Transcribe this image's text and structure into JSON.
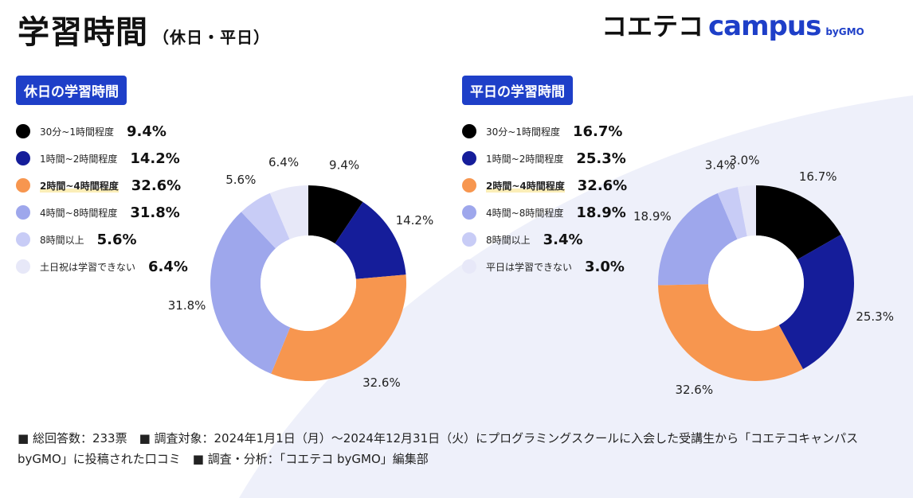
{
  "header": {
    "title": "学習時間",
    "subtitle": "（休日・平日）"
  },
  "logo": {
    "jp": "コエテコ",
    "en": "campus",
    "by": "byGMO"
  },
  "colors": [
    "#000000",
    "#151d9a",
    "#f7964f",
    "#9ea7ec",
    "#c8ccf6",
    "#e7e8f8"
  ],
  "chart_data": [
    {
      "type": "pie",
      "title": "休日の学習時間",
      "categories": [
        "30分~1時間程度",
        "1時間~2時間程度",
        "2時間~4時間程度",
        "4時間~8時間程度",
        "8時間以上",
        "土日祝は学習できない"
      ],
      "values": [
        9.4,
        14.2,
        32.6,
        31.8,
        5.6,
        6.4
      ],
      "data_labels": [
        "9.4%",
        "14.2%",
        "32.6%",
        "31.8%",
        "5.6%",
        "6.4%"
      ],
      "highlight_index": 2,
      "legend": "left",
      "donut": true
    },
    {
      "type": "pie",
      "title": "平日の学習時間",
      "categories": [
        "30分~1時間程度",
        "1時間~2時間程度",
        "2時間~4時間程度",
        "4時間~8時間程度",
        "8時間以上",
        "平日は学習できない"
      ],
      "values": [
        16.7,
        25.3,
        32.6,
        18.9,
        3.4,
        3.0
      ],
      "data_labels": [
        "16.7%",
        "25.3%",
        "32.6%",
        "18.9%",
        "3.4%",
        "3.0%"
      ],
      "highlight_index": 2,
      "legend": "left",
      "donut": true
    }
  ],
  "footer": "■ 総回答数：233票　■ 調査対象：2024年1月1日（月）〜2024年12月31日（火）にプログラミングスクールに入会した受講生から「コエテコキャンパス byGMO」に投稿された口コミ　■ 調査・分析：「コエテコ byGMO」編集部"
}
